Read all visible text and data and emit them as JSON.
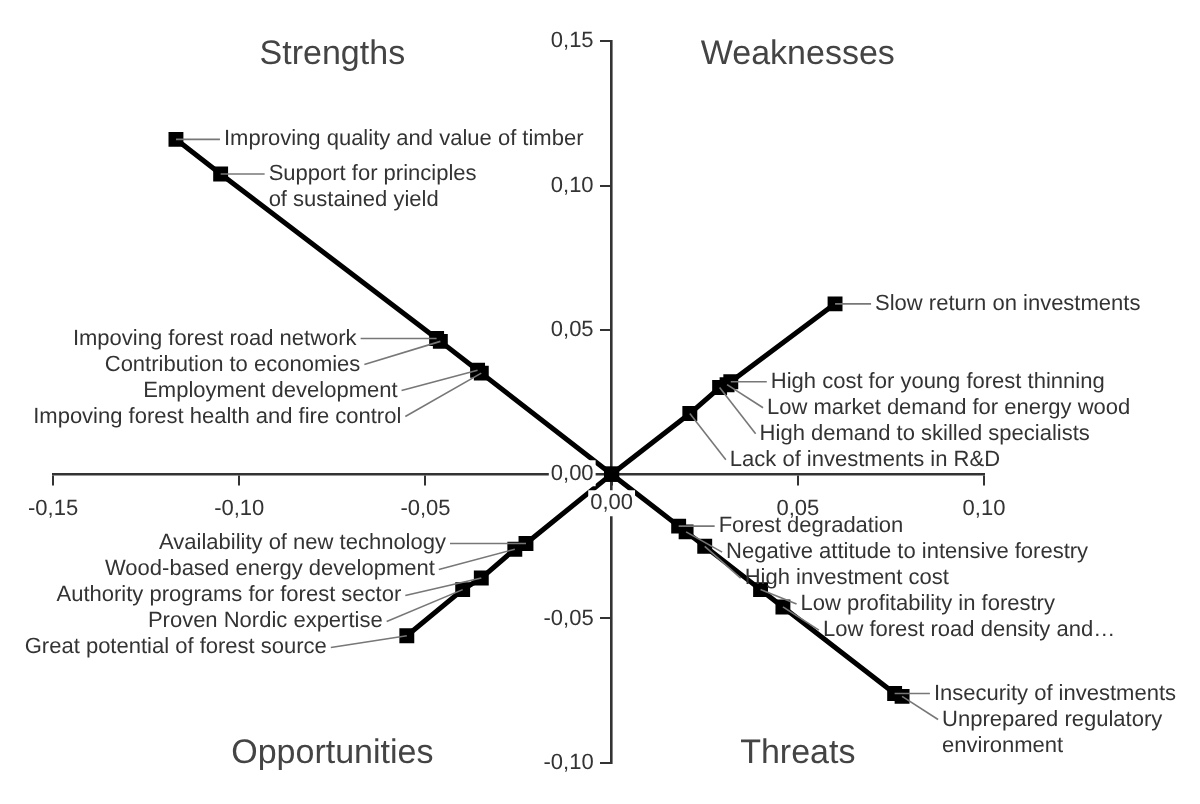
{
  "chart_data": {
    "type": "line",
    "marker": "square",
    "line_style": "solid",
    "grid": false,
    "legend": false,
    "xlim": [
      -0.15,
      0.1
    ],
    "ylim": [
      -0.1,
      0.15
    ],
    "xticks": [
      {
        "value": -0.15,
        "label": "-0,15"
      },
      {
        "value": -0.1,
        "label": "-0,10"
      },
      {
        "value": -0.05,
        "label": "-0,05"
      },
      {
        "value": 0,
        "label": "0,00"
      },
      {
        "value": 0.05,
        "label": "0,05"
      },
      {
        "value": 0.1,
        "label": "0,10"
      }
    ],
    "yticks": [
      {
        "value": -0.1,
        "label": "-0,10"
      },
      {
        "value": -0.05,
        "label": "-0,05"
      },
      {
        "value": 0,
        "label": "0,00"
      },
      {
        "value": 0.05,
        "label": "0,05"
      },
      {
        "value": 0.1,
        "label": "0,10"
      },
      {
        "value": 0.15,
        "label": "0,15"
      }
    ],
    "series": [
      {
        "color": "#000000",
        "x": [
          -0.117,
          -0.105,
          -0.047,
          -0.046,
          -0.036,
          -0.035,
          0
        ],
        "values": [
          0.116,
          0.104,
          0.047,
          0.046,
          0.036,
          0.035,
          0
        ]
      },
      {
        "color": "#000000",
        "x": [
          0,
          0.021,
          0.029,
          0.031,
          0.032,
          0.06
        ],
        "values": [
          0,
          0.021,
          0.03,
          0.031,
          0.032,
          0.059
        ]
      },
      {
        "color": "#000000",
        "x": [
          -0.055,
          -0.04,
          -0.035,
          -0.026,
          -0.023,
          0
        ],
        "values": [
          -0.056,
          -0.04,
          -0.036,
          -0.026,
          -0.024,
          0
        ]
      },
      {
        "color": "#000000",
        "x": [
          0,
          0.018,
          0.02,
          0.025,
          0.04,
          0.046,
          0.076,
          0.078
        ],
        "values": [
          0,
          -0.018,
          -0.02,
          -0.025,
          -0.04,
          -0.046,
          -0.076,
          -0.077
        ]
      }
    ],
    "annotations": [
      "Strengths",
      "Weaknesses",
      "Opportunities",
      "Threats",
      {
        "text": "Improving quality and value of timber",
        "x": -0.117,
        "y": 0.116
      },
      {
        "text": "Support for principles of sustained yield",
        "x": -0.105,
        "y": 0.104
      },
      {
        "text": "Impoving forest road network",
        "x": -0.047,
        "y": 0.047
      },
      {
        "text": "Contribution to economies",
        "x": -0.046,
        "y": 0.046
      },
      {
        "text": "Employment development",
        "x": -0.036,
        "y": 0.036
      },
      {
        "text": "Impoving forest health and fire control",
        "x": -0.035,
        "y": 0.035
      },
      {
        "text": "Slow return on investments",
        "x": 0.06,
        "y": 0.059
      },
      {
        "text": "High cost for young forest thinning",
        "x": 0.032,
        "y": 0.032
      },
      {
        "text": "Low market demand for energy wood",
        "x": 0.031,
        "y": 0.031
      },
      {
        "text": "High demand to skilled specialists",
        "x": 0.029,
        "y": 0.03
      },
      {
        "text": "Lack of investments in R&D",
        "x": 0.021,
        "y": 0.021
      },
      {
        "text": "Availability of new technology",
        "x": -0.023,
        "y": -0.024
      },
      {
        "text": "Wood-based energy development",
        "x": -0.026,
        "y": -0.026
      },
      {
        "text": "Authority programs for forest sector",
        "x": -0.035,
        "y": -0.036
      },
      {
        "text": "Proven Nordic expertise",
        "x": -0.04,
        "y": -0.04
      },
      {
        "text": "Great potential of forest source",
        "x": -0.055,
        "y": -0.056
      },
      {
        "text": "Forest degradation",
        "x": 0.018,
        "y": -0.018
      },
      {
        "text": "Negative attitude to intensive forestry",
        "x": 0.02,
        "y": -0.02
      },
      {
        "text": "High investment cost",
        "x": 0.025,
        "y": -0.025
      },
      {
        "text": "Low profitability in forestry",
        "x": 0.04,
        "y": -0.04
      },
      {
        "text": "Low forest road density and…",
        "x": 0.046,
        "y": -0.046
      },
      {
        "text": "Insecurity of investments",
        "x": 0.076,
        "y": -0.076
      },
      {
        "text": "Unprepared regulatory environment",
        "x": 0.078,
        "y": -0.077
      }
    ]
  }
}
